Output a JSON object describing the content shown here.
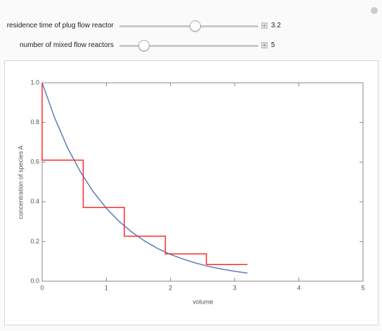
{
  "controls": [
    {
      "label": "residence time of plug flow reactor",
      "value": 3.2
    },
    {
      "label": "number of mixed flow reactors",
      "value": 5
    }
  ],
  "chart_data": {
    "type": "line",
    "xlabel": "volume",
    "ylabel": "concentration of species A",
    "xlim": [
      0,
      5
    ],
    "ylim": [
      0,
      1
    ],
    "xticks": [
      0,
      1,
      2,
      3,
      4,
      5
    ],
    "yticks": [
      {
        "value": 0,
        "label": "0.0"
      },
      0.2,
      0.4,
      0.6,
      0.8,
      {
        "value": 1,
        "label": "1.0"
      }
    ],
    "series": [
      {
        "color": "#5b7fb8",
        "x": [
          0,
          0.2,
          0.4,
          0.6,
          0.8,
          1.0,
          1.2,
          1.4,
          1.6,
          1.8,
          2.0,
          2.2,
          2.4,
          2.6,
          2.8,
          3.0,
          3.2
        ],
        "values": [
          1,
          0.819,
          0.67,
          0.549,
          0.449,
          0.368,
          0.301,
          0.247,
          0.202,
          0.165,
          0.135,
          0.111,
          0.091,
          0.074,
          0.061,
          0.05,
          0.041
        ]
      },
      {
        "color": "#ff2a2a",
        "x": [
          0,
          0,
          0.64,
          0.64,
          1.28,
          1.28,
          1.92,
          1.92,
          2.56,
          2.56,
          3.2
        ],
        "values": [
          1,
          0.61,
          0.61,
          0.372,
          0.372,
          0.227,
          0.227,
          0.138,
          0.138,
          0.084,
          0.084
        ]
      }
    ]
  }
}
